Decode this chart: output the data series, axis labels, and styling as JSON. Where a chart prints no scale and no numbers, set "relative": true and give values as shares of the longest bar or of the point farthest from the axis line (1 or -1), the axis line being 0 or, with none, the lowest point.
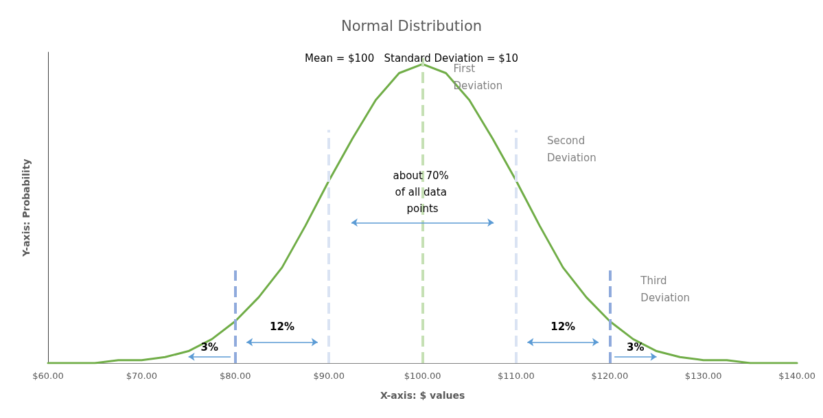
{
  "chart_data": {
    "type": "line",
    "title": "Normal Distribution",
    "subtitle": "Mean = $100   Standard Deviation = $10",
    "xlabel": "X-axis: $ values",
    "ylabel": "Y-axis: Probability",
    "relative": true,
    "grid": false,
    "marker": "none",
    "line_style": "solid",
    "x": [
      60,
      62.5,
      65,
      67.5,
      70,
      72.5,
      75,
      77.5,
      80,
      82.5,
      85,
      87.5,
      90,
      92.5,
      95,
      97.5,
      100,
      102.5,
      105,
      107.5,
      110,
      112.5,
      115,
      117.5,
      120,
      122.5,
      125,
      127.5,
      130,
      132.5,
      135,
      137.5,
      140
    ],
    "series": [
      {
        "color": "#70ad47",
        "values": [
          0,
          0,
          0,
          0.01,
          0.01,
          0.02,
          0.04,
          0.08,
          0.14,
          0.22,
          0.32,
          0.46,
          0.61,
          0.75,
          0.88,
          0.97,
          1,
          0.97,
          0.88,
          0.75,
          0.61,
          0.46,
          0.32,
          0.22,
          0.14,
          0.08,
          0.04,
          0.02,
          0.01,
          0.01,
          0,
          0,
          0
        ]
      }
    ],
    "xlim": [
      60,
      140
    ],
    "xticks": [
      {
        "value": 60,
        "label": "$60.00"
      },
      {
        "value": 70,
        "label": "$70.00"
      },
      {
        "value": 80,
        "label": "$80.00"
      },
      {
        "value": 90,
        "label": "$90.00"
      },
      {
        "value": 100,
        "label": "$100.00"
      },
      {
        "value": 110,
        "label": "$110.00"
      },
      {
        "value": 120,
        "label": "$120.00"
      },
      {
        "value": 130,
        "label": "$130.00"
      },
      {
        "value": 140,
        "label": "$140.00"
      }
    ],
    "ref_lines": [
      {
        "axis": "x",
        "value": 80,
        "color": "#8faadc",
        "line_style": "dashed"
      },
      {
        "axis": "x",
        "value": 90,
        "color": "#dae3f3",
        "line_style": "dashed"
      },
      {
        "axis": "x",
        "value": 100,
        "label": "First Deviation",
        "color": "#c5e0b4",
        "line_style": "dashed"
      },
      {
        "axis": "x",
        "value": 110,
        "label": "Second Deviation",
        "color": "#dae3f3",
        "line_style": "dashed"
      },
      {
        "axis": "x",
        "value": 120,
        "label": "Third Deviation",
        "color": "#8faadc",
        "line_style": "dashed"
      }
    ],
    "annotations": [
      {
        "text": "about 70% of all data points",
        "x": 100,
        "y": 0.47
      },
      "3%",
      "12%",
      "12%",
      "3%"
    ]
  }
}
